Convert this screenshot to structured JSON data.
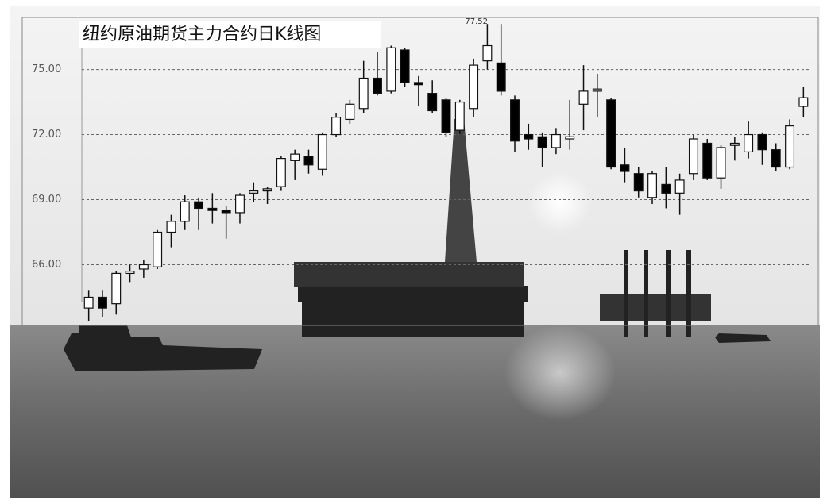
{
  "chart_data": {
    "type": "candlestick",
    "title": "纽约原油期货主力合约日K线图",
    "annotation": "77.52",
    "open": [
      64.0,
      64.5,
      64.2,
      65.6,
      65.8,
      65.9,
      67.5,
      68.0,
      68.9,
      68.6,
      68.5,
      68.4,
      69.3,
      69.4,
      69.6,
      70.8,
      71.0,
      70.4,
      72.0,
      72.7,
      73.2,
      74.6,
      74.0,
      75.9,
      74.4,
      73.9,
      73.6,
      72.2,
      73.2,
      75.4,
      75.3,
      73.6,
      72.0,
      71.9,
      71.4,
      71.8,
      73.4,
      74.0,
      73.6,
      70.6,
      70.2,
      69.1,
      69.7,
      69.3,
      70.2,
      71.6,
      70.0,
      71.5,
      71.2,
      72.0,
      71.3,
      70.5,
      73.3
    ],
    "high": [
      64.8,
      64.8,
      65.7,
      66.0,
      66.2,
      67.6,
      68.3,
      69.2,
      69.1,
      69.3,
      68.7,
      69.3,
      69.8,
      69.6,
      71.0,
      71.3,
      71.3,
      72.1,
      73.0,
      73.6,
      75.4,
      75.8,
      76.1,
      76.0,
      74.7,
      74.5,
      73.7,
      73.6,
      75.5,
      77.1,
      77.1,
      73.8,
      72.5,
      72.1,
      72.3,
      73.6,
      75.2,
      74.8,
      73.7,
      71.4,
      70.5,
      70.3,
      70.5,
      70.2,
      72.0,
      71.8,
      71.5,
      71.9,
      72.6,
      72.1,
      71.6,
      72.7,
      74.2
    ],
    "low": [
      63.4,
      63.6,
      63.7,
      65.2,
      65.4,
      65.8,
      66.8,
      67.6,
      67.6,
      67.9,
      67.2,
      67.9,
      68.9,
      68.8,
      69.4,
      69.9,
      70.2,
      70.1,
      71.9,
      72.5,
      73.0,
      73.8,
      73.9,
      74.2,
      73.3,
      73.0,
      71.9,
      72.0,
      72.8,
      75.0,
      73.8,
      71.2,
      71.3,
      70.5,
      71.1,
      71.3,
      72.2,
      72.8,
      70.4,
      69.8,
      69.1,
      68.8,
      68.6,
      68.3,
      69.9,
      69.9,
      69.5,
      70.8,
      70.9,
      70.6,
      70.3,
      70.4,
      72.8
    ],
    "close": [
      64.5,
      64.0,
      65.6,
      65.7,
      66.0,
      67.5,
      68.0,
      68.9,
      68.6,
      68.5,
      68.4,
      69.2,
      69.4,
      69.5,
      70.9,
      71.1,
      70.6,
      72.0,
      72.8,
      73.4,
      74.6,
      73.9,
      76.0,
      74.4,
      74.3,
      73.1,
      72.1,
      73.5,
      75.2,
      76.1,
      74.0,
      71.7,
      71.8,
      71.4,
      72.0,
      71.9,
      74.0,
      74.1,
      70.5,
      70.3,
      69.4,
      70.2,
      69.3,
      69.9,
      71.8,
      70.0,
      71.4,
      71.6,
      72.0,
      71.3,
      70.5,
      72.4,
      73.7
    ],
    "up_color": "#ffffff",
    "down_color": "#000000",
    "ylim": [
      63.2,
      77.4
    ],
    "yticks": [
      {
        "value": 66,
        "label": "66.00"
      },
      {
        "value": 69,
        "label": "69.00"
      },
      {
        "value": 72,
        "label": "72.00"
      },
      {
        "value": 75,
        "label": "75.00"
      }
    ],
    "grid": true
  }
}
